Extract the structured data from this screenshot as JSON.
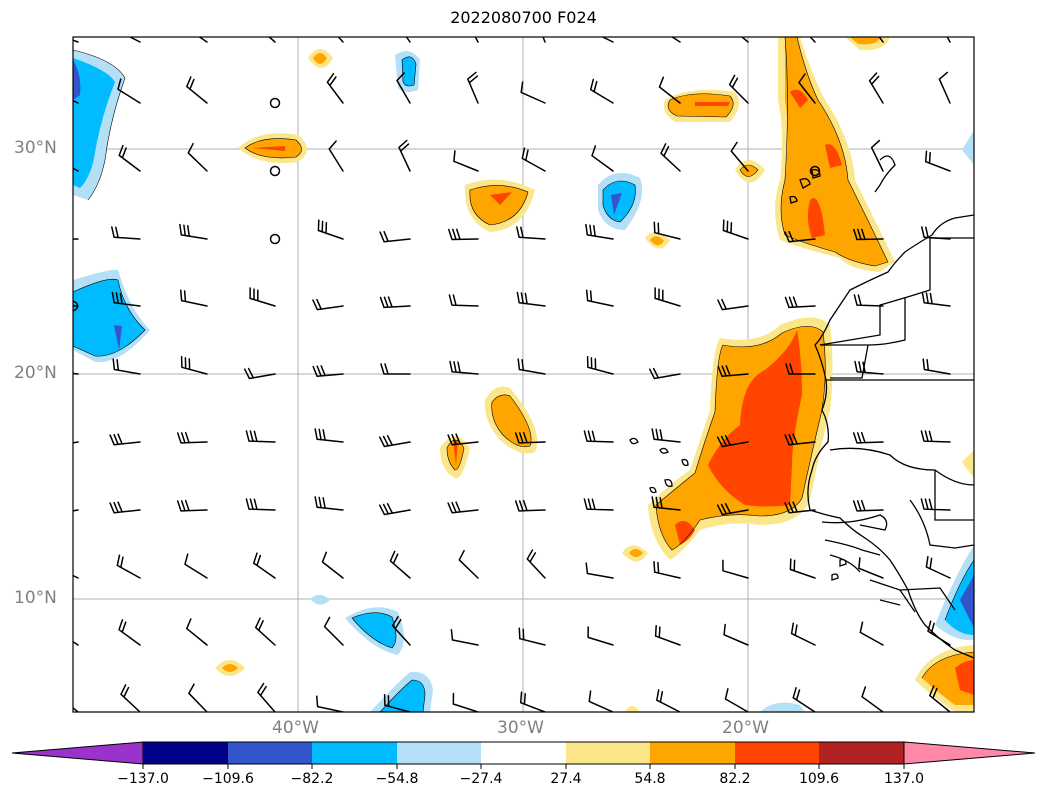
{
  "title": "2022080700 F024",
  "lat_labels": [
    {
      "text": "30°N",
      "lat": 30
    },
    {
      "text": "20°N",
      "lat": 20
    },
    {
      "text": "10°N",
      "lat": 10
    }
  ],
  "lon_labels": [
    {
      "text": "40°W",
      "lon": -40
    },
    {
      "text": "30°W",
      "lon": -30
    },
    {
      "text": "20°W",
      "lon": -20
    }
  ],
  "extent": {
    "lon_min": -50,
    "lon_max": -10,
    "lat_min": 5,
    "lat_max": 35
  },
  "colorbar": {
    "ticks": [
      "−137.0",
      "−109.6",
      "−82.2",
      "−54.8",
      "−27.4",
      "27.4",
      "54.8",
      "82.2",
      "109.6",
      "137.0"
    ],
    "colors": [
      "#9933cc",
      "#000088",
      "#3355cc",
      "#00bbff",
      "#b3e0f7",
      "#ffffff",
      "#fbe68a",
      "#ffa500",
      "#ff4500",
      "#b22222",
      "#ff88aa"
    ]
  }
}
